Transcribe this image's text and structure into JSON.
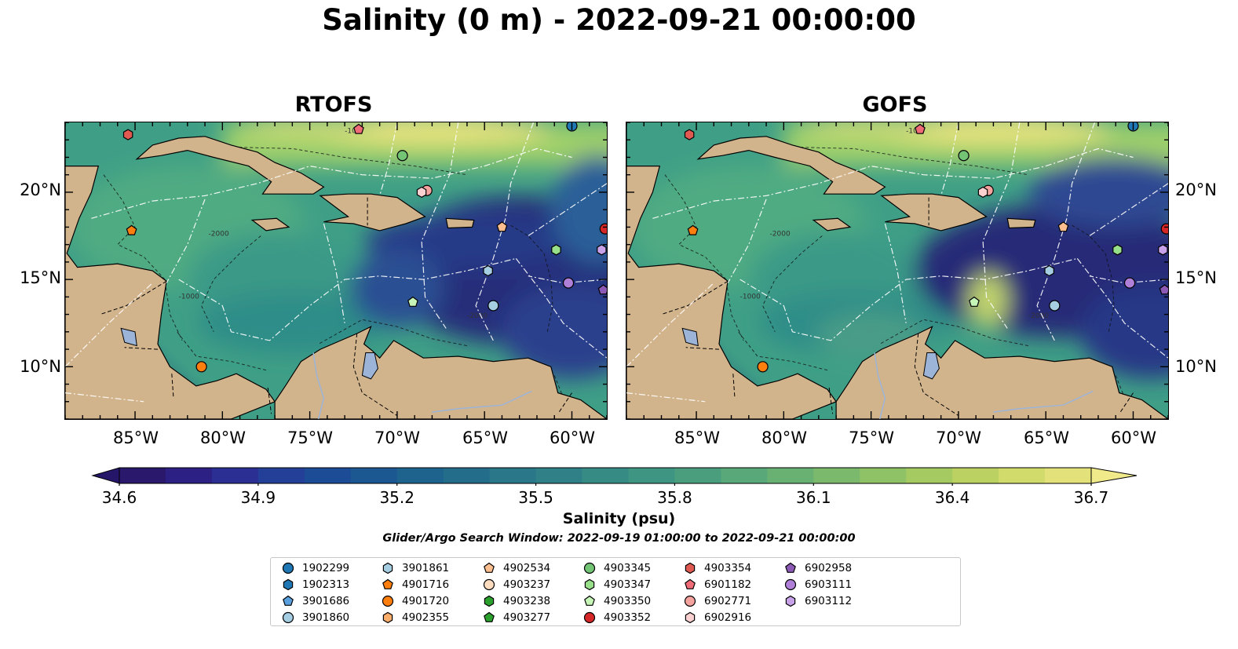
{
  "title": "Salinity (0 m) - 2022-09-21 00:00:00",
  "panels": [
    {
      "id": "rtofs",
      "title": "RTOFS"
    },
    {
      "id": "gofs",
      "title": "GOFS"
    }
  ],
  "map": {
    "lon_range": [
      -89,
      -58
    ],
    "lat_range": [
      7,
      24
    ],
    "lat_ticks": [
      {
        "value": 10,
        "label": "10°N"
      },
      {
        "value": 15,
        "label": "15°N"
      },
      {
        "value": 20,
        "label": "20°N"
      }
    ],
    "lon_ticks": [
      {
        "value": -85,
        "label": "85°W"
      },
      {
        "value": -80,
        "label": "80°W"
      },
      {
        "value": -75,
        "label": "75°W"
      },
      {
        "value": -70,
        "label": "70°W"
      },
      {
        "value": -65,
        "label": "65°W"
      },
      {
        "value": -60,
        "label": "60°W"
      }
    ],
    "land_color": "#d2b48c",
    "ocean_colormap": "haline",
    "contour_labels": [
      "-100",
      "-1000",
      "-2000"
    ]
  },
  "colorbar": {
    "min": 34.6,
    "max": 36.7,
    "ticks": [
      "34.6",
      "34.9",
      "35.2",
      "35.5",
      "35.8",
      "36.1",
      "36.4",
      "36.7"
    ],
    "label": "Salinity (psu)",
    "extend": "both"
  },
  "search_window": "Glider/Argo Search Window: 2022-09-19 01:00:00 to 2022-09-21 00:00:00",
  "floats": [
    {
      "id": "1902299",
      "marker": "circle",
      "color": "#1f77b4",
      "lon": -60.0,
      "lat": 23.8
    },
    {
      "id": "1902313",
      "marker": "hexagon",
      "color": "#1f77b4",
      "lon": null,
      "lat": null
    },
    {
      "id": "3901686",
      "marker": "pentagon",
      "color": "#5aa0de",
      "lon": null,
      "lat": null
    },
    {
      "id": "3901860",
      "marker": "circle",
      "color": "#a6cee3",
      "lon": -64.5,
      "lat": 13.5
    },
    {
      "id": "3901861",
      "marker": "hexagon",
      "color": "#a6cee3",
      "lon": -64.8,
      "lat": 15.5
    },
    {
      "id": "4901716",
      "marker": "pentagon",
      "color": "#ff7f0e",
      "lon": -85.2,
      "lat": 17.8
    },
    {
      "id": "4901720",
      "marker": "circle",
      "color": "#ff7f0e",
      "lon": -81.2,
      "lat": 10.0
    },
    {
      "id": "4902355",
      "marker": "hexagon",
      "color": "#fdae6b",
      "lon": null,
      "lat": null
    },
    {
      "id": "4902534",
      "marker": "pentagon",
      "color": "#fdbf8f",
      "lon": -64.0,
      "lat": 18.0
    },
    {
      "id": "4903237",
      "marker": "circle",
      "color": "#fedcc0",
      "lon": null,
      "lat": null
    },
    {
      "id": "4903238",
      "marker": "hexagon",
      "color": "#2ca02c",
      "lon": null,
      "lat": null
    },
    {
      "id": "4903277",
      "marker": "pentagon",
      "color": "#2ca02c",
      "lon": null,
      "lat": null
    },
    {
      "id": "4903345",
      "marker": "circle",
      "color": "#74c476",
      "lon": -69.7,
      "lat": 22.1
    },
    {
      "id": "4903347",
      "marker": "hexagon",
      "color": "#98df8a",
      "lon": -60.9,
      "lat": 16.7
    },
    {
      "id": "4903350",
      "marker": "pentagon",
      "color": "#c7f5b8",
      "lon": -69.1,
      "lat": 13.7
    },
    {
      "id": "4903352",
      "marker": "circle",
      "color": "#d62728",
      "lon": -58.1,
      "lat": 17.9
    },
    {
      "id": "4903354",
      "marker": "hexagon",
      "color": "#e05a52",
      "lon": -85.4,
      "lat": 23.3
    },
    {
      "id": "6901182",
      "marker": "pentagon",
      "color": "#ee6b77",
      "lon": -72.2,
      "lat": 23.6
    },
    {
      "id": "6902771",
      "marker": "circle",
      "color": "#f5a39f",
      "lon": -68.3,
      "lat": 20.1
    },
    {
      "id": "6902916",
      "marker": "hexagon",
      "color": "#fbd0d0",
      "lon": -68.6,
      "lat": 20.0
    },
    {
      "id": "6902958",
      "marker": "pentagon",
      "color": "#8c5ab4",
      "lon": -58.2,
      "lat": 14.4
    },
    {
      "id": "6903111",
      "marker": "circle",
      "color": "#b07fd8",
      "lon": -60.2,
      "lat": 14.8
    },
    {
      "id": "6903112",
      "marker": "hexagon",
      "color": "#c8a2e8",
      "lon": -58.3,
      "lat": 16.7
    }
  ]
}
